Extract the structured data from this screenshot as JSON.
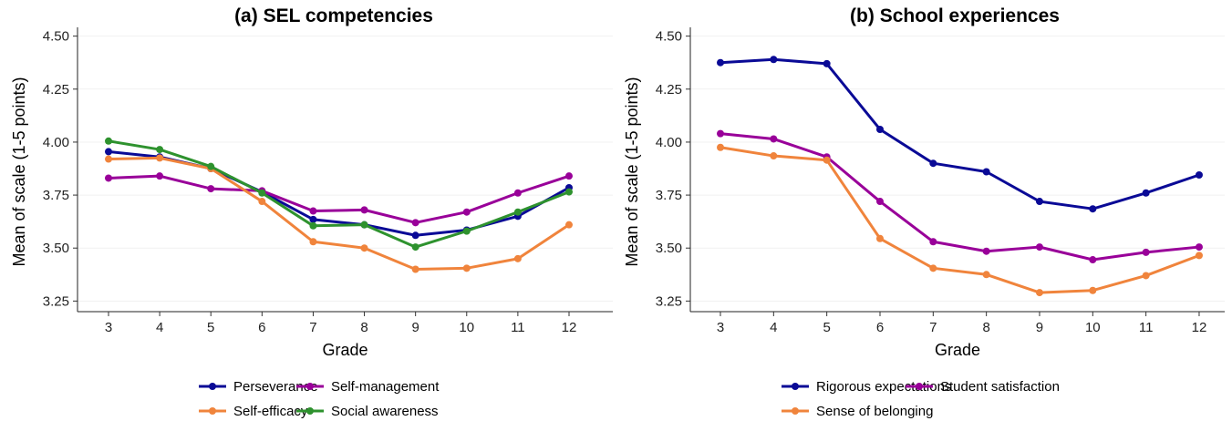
{
  "chart_data": [
    {
      "type": "line",
      "title": "(a) SEL competencies",
      "xlabel": "Grade",
      "ylabel": "Mean of scale (1-5 points)",
      "ylim": [
        3.2,
        4.52
      ],
      "yticks": [
        "3.25",
        "3.50",
        "3.75",
        "4.00",
        "4.25",
        "4.50"
      ],
      "categories": [
        "3",
        "4",
        "5",
        "6",
        "7",
        "8",
        "9",
        "10",
        "11",
        "12"
      ],
      "grid": "faint horizontal",
      "legend_position": "bottom",
      "series": [
        {
          "name": "Perseverance",
          "color": "#0a0a96",
          "values": [
            3.955,
            3.93,
            3.875,
            3.765,
            3.635,
            3.61,
            3.56,
            3.585,
            3.65,
            3.785
          ]
        },
        {
          "name": "Self-management",
          "color": "#990099",
          "values": [
            3.83,
            3.84,
            3.78,
            3.77,
            3.675,
            3.68,
            3.62,
            3.67,
            3.76,
            3.84
          ]
        },
        {
          "name": "Self-efficacy",
          "color": "#f0843c",
          "values": [
            3.92,
            3.925,
            3.875,
            3.72,
            3.53,
            3.5,
            3.4,
            3.405,
            3.45,
            3.61
          ]
        },
        {
          "name": "Social awareness",
          "color": "#2e922e",
          "values": [
            4.005,
            3.965,
            3.885,
            3.76,
            3.605,
            3.61,
            3.505,
            3.58,
            3.67,
            3.765
          ]
        }
      ]
    },
    {
      "type": "line",
      "title": "(b) School experiences",
      "xlabel": "Grade",
      "ylabel": "Mean of scale (1-5 points)",
      "ylim": [
        3.2,
        4.52
      ],
      "yticks": [
        "3.25",
        "3.50",
        "3.75",
        "4.00",
        "4.25",
        "4.50"
      ],
      "categories": [
        "3",
        "4",
        "5",
        "6",
        "7",
        "8",
        "9",
        "10",
        "11",
        "12"
      ],
      "grid": "faint horizontal",
      "legend_position": "bottom",
      "series": [
        {
          "name": "Rigorous expectations",
          "color": "#0a0a96",
          "values": [
            4.375,
            4.39,
            4.37,
            4.06,
            3.9,
            3.86,
            3.72,
            3.685,
            3.76,
            3.845
          ]
        },
        {
          "name": "Student satisfaction",
          "color": "#990099",
          "values": [
            4.04,
            4.015,
            3.93,
            3.72,
            3.53,
            3.485,
            3.505,
            3.445,
            3.48,
            3.505
          ]
        },
        {
          "name": "Sense of belonging",
          "color": "#f0843c",
          "values": [
            3.975,
            3.935,
            3.915,
            3.545,
            3.405,
            3.375,
            3.29,
            3.3,
            3.37,
            3.465
          ]
        }
      ]
    }
  ]
}
